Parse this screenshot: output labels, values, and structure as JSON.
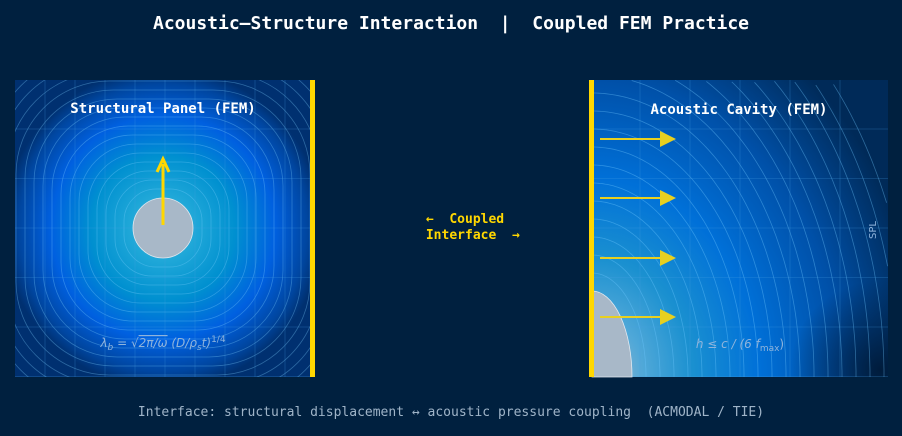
{
  "title": "Acoustic–Structure Interaction  |  Coupled FEM Practice",
  "structural_panel": {
    "title": "Structural Panel (FEM)",
    "formula": "λ_b = √(2π/ω) (D/ρ_s t)^1/4",
    "formula_parts": {
      "lhs": "λ",
      "lhs_sub": "b",
      "eq": " = √",
      "rad": "2π/ω",
      "mid": " (D/ρ",
      "mid_sub": "s",
      "end": "t)",
      "exp": "1/4"
    }
  },
  "acoustic_cavity": {
    "title": "Acoustic Cavity (FEM)",
    "spl_label": "SPL",
    "formula_parts": {
      "a": "h ≤ c / (6 f",
      "sub": "max",
      "b": ")"
    }
  },
  "coupling": {
    "line1": "←  Coupled",
    "line2": "  Interface  →"
  },
  "footer": "Interface: structural displacement ↔ acoustic pressure coupling  (ACMODAL / TIE)",
  "colors": {
    "background": "#00203f",
    "interface": "#ffd700",
    "arrow": "#e8d020",
    "panel_blue": "#0066d6"
  }
}
